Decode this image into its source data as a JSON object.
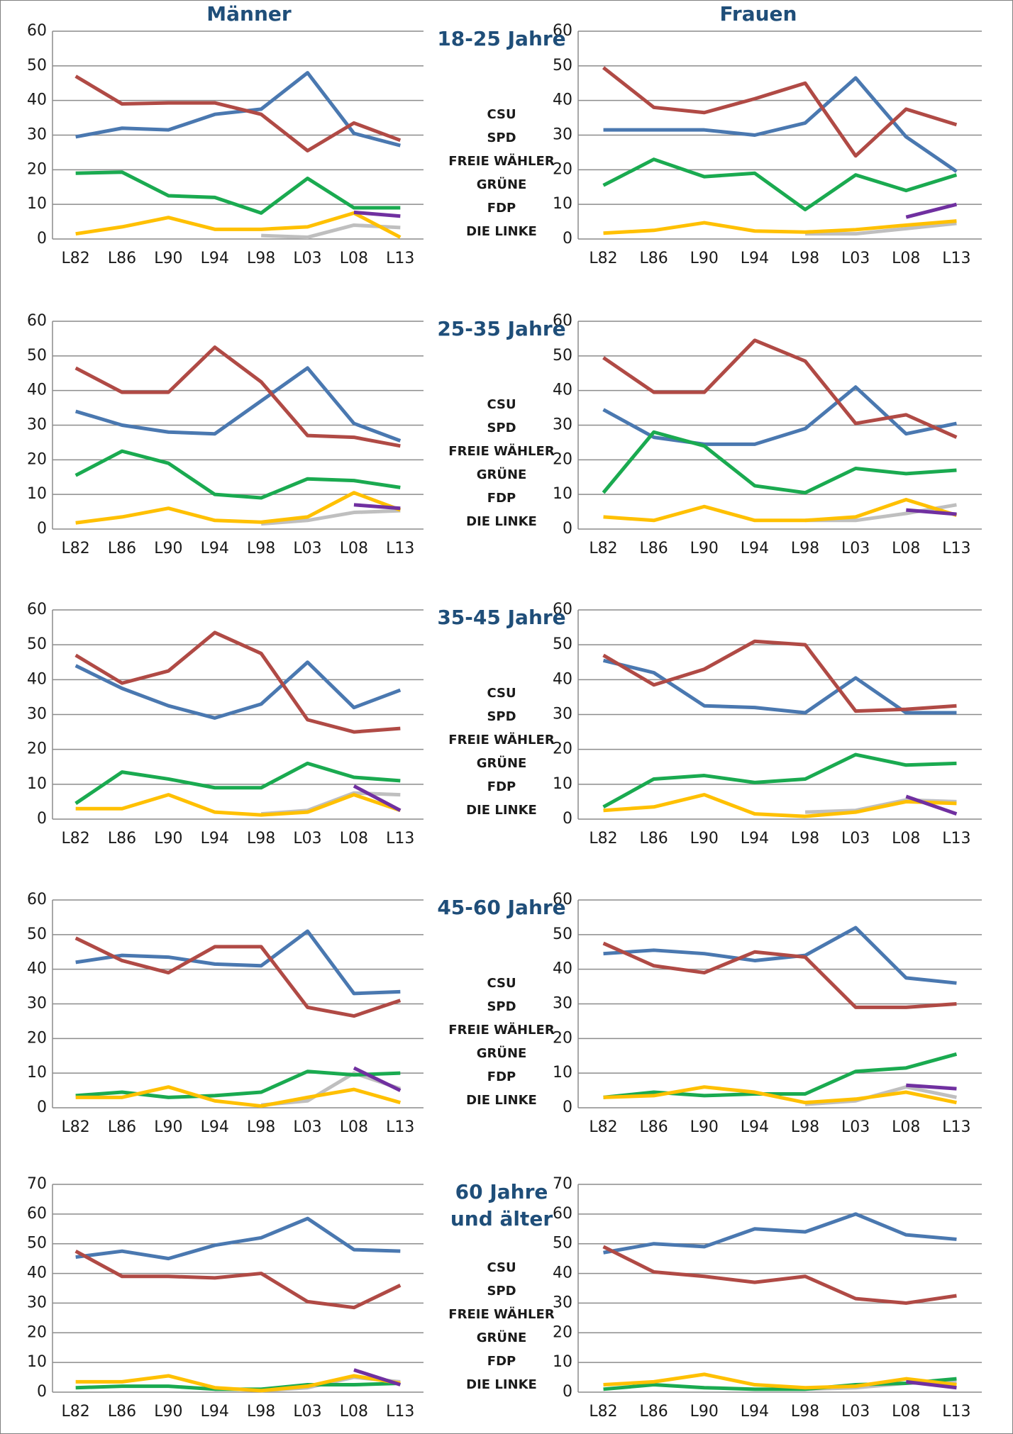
{
  "headers": [
    "Männer",
    "Frauen"
  ],
  "chart_data": [
    {
      "type": "line",
      "title": "18-25 Jahre",
      "categories": [
        "L82",
        "L86",
        "L90",
        "L94",
        "L98",
        "L03",
        "L08",
        "L13"
      ],
      "ylim": [
        0,
        60
      ],
      "yticks": [
        0,
        10,
        20,
        30,
        40,
        50,
        60
      ],
      "grid": true,
      "series": [
        {
          "name": "CSU",
          "color": "#4a78b0",
          "values": [
            29.5,
            32,
            31.5,
            36,
            37.5,
            48,
            30.5,
            27
          ]
        },
        {
          "name": "SPD",
          "color": "#b04a45",
          "values": [
            47,
            39,
            39.3,
            39.3,
            36,
            25.5,
            33.5,
            28.5
          ]
        },
        {
          "name": "FREIE WÄHLER",
          "color": "#bfbfbf",
          "values": [
            null,
            null,
            null,
            null,
            1,
            0.5,
            4,
            3.3
          ]
        },
        {
          "name": "GRÜNE",
          "color": "#1aaa50",
          "values": [
            19,
            19.3,
            12.5,
            12,
            7.5,
            17.5,
            9,
            9
          ]
        },
        {
          "name": "FDP",
          "color": "#ffc000",
          "values": [
            1.5,
            3.5,
            6.2,
            2.8,
            2.8,
            3.5,
            7.5,
            0.5
          ]
        },
        {
          "name": "DIE LINKE",
          "color": "#7030a0",
          "values": [
            null,
            null,
            null,
            null,
            null,
            null,
            7.7,
            6.6
          ]
        }
      ]
    },
    {
      "type": "line",
      "categories": [
        "L82",
        "L86",
        "L90",
        "L94",
        "L98",
        "L03",
        "L08",
        "L13"
      ],
      "ylim": [
        0,
        60
      ],
      "yticks": [
        0,
        10,
        20,
        30,
        40,
        50,
        60
      ],
      "grid": true,
      "series": [
        {
          "name": "CSU",
          "color": "#4a78b0",
          "values": [
            31.5,
            31.5,
            31.5,
            30,
            33.5,
            46.5,
            29.5,
            19.5
          ]
        },
        {
          "name": "SPD",
          "color": "#b04a45",
          "values": [
            49.5,
            38,
            36.5,
            40.5,
            45,
            24,
            37.5,
            33
          ]
        },
        {
          "name": "FREIE WÄHLER",
          "color": "#bfbfbf",
          "values": [
            null,
            null,
            null,
            null,
            1.5,
            1.5,
            3,
            4.5
          ]
        },
        {
          "name": "GRÜNE",
          "color": "#1aaa50",
          "values": [
            15.5,
            23,
            18,
            19,
            8.5,
            18.5,
            14,
            18.5
          ]
        },
        {
          "name": "FDP",
          "color": "#ffc000",
          "values": [
            1.7,
            2.5,
            4.7,
            2.3,
            2,
            2.7,
            4,
            5.2
          ]
        },
        {
          "name": "DIE LINKE",
          "color": "#7030a0",
          "values": [
            null,
            null,
            null,
            null,
            null,
            null,
            6.3,
            10
          ]
        }
      ]
    },
    {
      "type": "line",
      "title": "25-35 Jahre",
      "categories": [
        "L82",
        "L86",
        "L90",
        "L94",
        "L98",
        "L03",
        "L08",
        "L13"
      ],
      "ylim": [
        0,
        60
      ],
      "yticks": [
        0,
        10,
        20,
        30,
        40,
        50,
        60
      ],
      "grid": true,
      "series": [
        {
          "name": "CSU",
          "color": "#4a78b0",
          "values": [
            34,
            30,
            28,
            27.5,
            37,
            46.5,
            30.5,
            25.5
          ]
        },
        {
          "name": "SPD",
          "color": "#b04a45",
          "values": [
            46.5,
            39.5,
            39.5,
            52.5,
            42.5,
            27,
            26.5,
            24
          ]
        },
        {
          "name": "FREIE WÄHLER",
          "color": "#bfbfbf",
          "values": [
            null,
            null,
            null,
            null,
            1.5,
            2.5,
            4.8,
            5.3
          ]
        },
        {
          "name": "GRÜNE",
          "color": "#1aaa50",
          "values": [
            15.5,
            22.5,
            19,
            10,
            9,
            14.5,
            14,
            12
          ]
        },
        {
          "name": "FDP",
          "color": "#ffc000",
          "values": [
            1.8,
            3.5,
            6,
            2.5,
            2,
            3.5,
            10.5,
            5.5
          ]
        },
        {
          "name": "DIE LINKE",
          "color": "#7030a0",
          "values": [
            null,
            null,
            null,
            null,
            null,
            null,
            7,
            6
          ]
        }
      ]
    },
    {
      "type": "line",
      "categories": [
        "L82",
        "L86",
        "L90",
        "L94",
        "L98",
        "L03",
        "L08",
        "L13"
      ],
      "ylim": [
        0,
        60
      ],
      "yticks": [
        0,
        10,
        20,
        30,
        40,
        50,
        60
      ],
      "grid": true,
      "series": [
        {
          "name": "CSU",
          "color": "#4a78b0",
          "values": [
            34.5,
            26.5,
            24.5,
            24.5,
            29,
            41,
            27.5,
            30.5
          ]
        },
        {
          "name": "SPD",
          "color": "#b04a45",
          "values": [
            49.5,
            39.5,
            39.5,
            54.5,
            48.5,
            30.5,
            33,
            26.5
          ]
        },
        {
          "name": "FREIE WÄHLER",
          "color": "#bfbfbf",
          "values": [
            null,
            null,
            null,
            null,
            2.5,
            2.5,
            4.5,
            7
          ]
        },
        {
          "name": "GRÜNE",
          "color": "#1aaa50",
          "values": [
            10.5,
            28,
            24,
            12.5,
            10.5,
            17.5,
            16,
            17
          ]
        },
        {
          "name": "FDP",
          "color": "#ffc000",
          "values": [
            3.5,
            2.5,
            6.5,
            2.5,
            2.5,
            3.5,
            8.5,
            4
          ]
        },
        {
          "name": "DIE LINKE",
          "color": "#7030a0",
          "values": [
            null,
            null,
            null,
            null,
            null,
            null,
            5.5,
            4.3
          ]
        }
      ]
    },
    {
      "type": "line",
      "title": "35-45 Jahre",
      "categories": [
        "L82",
        "L86",
        "L90",
        "L94",
        "L98",
        "L03",
        "L08",
        "L13"
      ],
      "ylim": [
        0,
        60
      ],
      "yticks": [
        0,
        10,
        20,
        30,
        40,
        50,
        60
      ],
      "grid": true,
      "series": [
        {
          "name": "CSU",
          "color": "#4a78b0",
          "values": [
            44,
            37.5,
            32.5,
            29,
            33,
            45,
            32,
            37
          ]
        },
        {
          "name": "SPD",
          "color": "#b04a45",
          "values": [
            47,
            39,
            42.5,
            53.5,
            47.5,
            28.5,
            25,
            26
          ]
        },
        {
          "name": "FREIE WÄHLER",
          "color": "#bfbfbf",
          "values": [
            null,
            null,
            null,
            null,
            1.5,
            2.5,
            7.5,
            7
          ]
        },
        {
          "name": "GRÜNE",
          "color": "#1aaa50",
          "values": [
            4.5,
            13.5,
            11.5,
            9,
            9,
            16,
            12,
            11
          ]
        },
        {
          "name": "FDP",
          "color": "#ffc000",
          "values": [
            3,
            3,
            7,
            2,
            1.2,
            2,
            7,
            2.5
          ]
        },
        {
          "name": "DIE LINKE",
          "color": "#7030a0",
          "values": [
            null,
            null,
            null,
            null,
            null,
            null,
            9.5,
            2.5
          ]
        }
      ]
    },
    {
      "type": "line",
      "categories": [
        "L82",
        "L86",
        "L90",
        "L94",
        "L98",
        "L03",
        "L08",
        "L13"
      ],
      "ylim": [
        0,
        60
      ],
      "yticks": [
        0,
        10,
        20,
        30,
        40,
        50,
        60
      ],
      "grid": true,
      "series": [
        {
          "name": "CSU",
          "color": "#4a78b0",
          "values": [
            45.5,
            42,
            32.5,
            32,
            30.5,
            40.5,
            30.5,
            30.5
          ]
        },
        {
          "name": "SPD",
          "color": "#b04a45",
          "values": [
            47,
            38.5,
            43,
            51,
            50,
            31,
            31.5,
            32.5
          ]
        },
        {
          "name": "FREIE WÄHLER",
          "color": "#bfbfbf",
          "values": [
            null,
            null,
            null,
            null,
            2,
            2.5,
            5.5,
            5
          ]
        },
        {
          "name": "GRÜNE",
          "color": "#1aaa50",
          "values": [
            3.5,
            11.5,
            12.5,
            10.5,
            11.5,
            18.5,
            15.5,
            16
          ]
        },
        {
          "name": "FDP",
          "color": "#ffc000",
          "values": [
            2.5,
            3.5,
            7,
            1.5,
            0.8,
            2,
            5,
            4.5
          ]
        },
        {
          "name": "DIE LINKE",
          "color": "#7030a0",
          "values": [
            null,
            null,
            null,
            null,
            null,
            null,
            6.5,
            1.5
          ]
        }
      ]
    },
    {
      "type": "line",
      "title": "45-60 Jahre",
      "categories": [
        "L82",
        "L86",
        "L90",
        "L94",
        "L98",
        "L03",
        "L08",
        "L13"
      ],
      "ylim": [
        0,
        60
      ],
      "yticks": [
        0,
        10,
        20,
        30,
        40,
        50,
        60
      ],
      "grid": true,
      "series": [
        {
          "name": "CSU",
          "color": "#4a78b0",
          "values": [
            42,
            44,
            43.5,
            41.5,
            41,
            51,
            33,
            33.5
          ]
        },
        {
          "name": "SPD",
          "color": "#b04a45",
          "values": [
            49,
            42.5,
            39,
            46.5,
            46.5,
            29,
            26.5,
            31
          ]
        },
        {
          "name": "FREIE WÄHLER",
          "color": "#bfbfbf",
          "values": [
            null,
            null,
            null,
            null,
            0.8,
            2,
            10,
            5.5
          ]
        },
        {
          "name": "GRÜNE",
          "color": "#1aaa50",
          "values": [
            3.5,
            4.5,
            3,
            3.5,
            4.5,
            10.5,
            9.5,
            10
          ]
        },
        {
          "name": "FDP",
          "color": "#ffc000",
          "values": [
            3,
            3,
            6,
            2,
            0.5,
            3,
            5.3,
            1.5
          ]
        },
        {
          "name": "DIE LINKE",
          "color": "#7030a0",
          "values": [
            null,
            null,
            null,
            null,
            null,
            null,
            11.5,
            5
          ]
        }
      ]
    },
    {
      "type": "line",
      "categories": [
        "L82",
        "L86",
        "L90",
        "L94",
        "L98",
        "L03",
        "L08",
        "L13"
      ],
      "ylim": [
        0,
        60
      ],
      "yticks": [
        0,
        10,
        20,
        30,
        40,
        50,
        60
      ],
      "grid": true,
      "series": [
        {
          "name": "CSU",
          "color": "#4a78b0",
          "values": [
            44.5,
            45.5,
            44.5,
            42.5,
            44,
            52,
            37.5,
            36
          ]
        },
        {
          "name": "SPD",
          "color": "#b04a45",
          "values": [
            47.5,
            41,
            39,
            45,
            43.5,
            29,
            29,
            30
          ]
        },
        {
          "name": "FREIE WÄHLER",
          "color": "#bfbfbf",
          "values": [
            null,
            null,
            null,
            null,
            1,
            2,
            6,
            3
          ]
        },
        {
          "name": "GRÜNE",
          "color": "#1aaa50",
          "values": [
            3,
            4.5,
            3.5,
            4,
            4,
            10.5,
            11.5,
            15.5
          ]
        },
        {
          "name": "FDP",
          "color": "#ffc000",
          "values": [
            3,
            3.5,
            6,
            4.5,
            1.5,
            2.5,
            4.5,
            1.5
          ]
        },
        {
          "name": "DIE LINKE",
          "color": "#7030a0",
          "values": [
            null,
            null,
            null,
            null,
            null,
            null,
            6.5,
            5.5
          ]
        }
      ]
    },
    {
      "type": "line",
      "title": "60 Jahre und älter",
      "categories": [
        "L82",
        "L86",
        "L90",
        "L94",
        "L98",
        "L03",
        "L08",
        "L13"
      ],
      "ylim": [
        0,
        70
      ],
      "yticks": [
        0,
        10,
        20,
        30,
        40,
        50,
        60,
        70
      ],
      "grid": true,
      "series": [
        {
          "name": "CSU",
          "color": "#4a78b0",
          "values": [
            45.5,
            47.5,
            45,
            49.5,
            52,
            58.5,
            48,
            47.5
          ]
        },
        {
          "name": "SPD",
          "color": "#b04a45",
          "values": [
            47.5,
            39,
            39,
            38.5,
            40,
            30.5,
            28.5,
            36
          ]
        },
        {
          "name": "FREIE WÄHLER",
          "color": "#bfbfbf",
          "values": [
            null,
            null,
            null,
            null,
            0.5,
            1.5,
            5,
            3.5
          ]
        },
        {
          "name": "GRÜNE",
          "color": "#1aaa50",
          "values": [
            1.5,
            2,
            2,
            1,
            1,
            2.5,
            2.5,
            3
          ]
        },
        {
          "name": "FDP",
          "color": "#ffc000",
          "values": [
            3.5,
            3.5,
            5.5,
            1.5,
            0.5,
            2,
            5.5,
            3
          ]
        },
        {
          "name": "DIE LINKE",
          "color": "#7030a0",
          "values": [
            null,
            null,
            null,
            null,
            null,
            null,
            7.5,
            2.5
          ]
        }
      ]
    },
    {
      "type": "line",
      "categories": [
        "L82",
        "L86",
        "L90",
        "L94",
        "L98",
        "L03",
        "L08",
        "L13"
      ],
      "ylim": [
        0,
        70
      ],
      "yticks": [
        0,
        10,
        20,
        30,
        40,
        50,
        60,
        70
      ],
      "grid": true,
      "series": [
        {
          "name": "CSU",
          "color": "#4a78b0",
          "values": [
            47,
            50,
            49,
            55,
            54,
            60,
            53,
            51.5
          ]
        },
        {
          "name": "SPD",
          "color": "#b04a45",
          "values": [
            49,
            40.5,
            39,
            37,
            39,
            31.5,
            30,
            32.5
          ]
        },
        {
          "name": "FREIE WÄHLER",
          "color": "#bfbfbf",
          "values": [
            null,
            null,
            null,
            null,
            1,
            1.5,
            3,
            3.5
          ]
        },
        {
          "name": "GRÜNE",
          "color": "#1aaa50",
          "values": [
            1,
            2.5,
            1.5,
            1,
            1,
            2.5,
            3,
            4.5
          ]
        },
        {
          "name": "FDP",
          "color": "#ffc000",
          "values": [
            2.5,
            3.5,
            6,
            2.5,
            1.5,
            2,
            4.5,
            2.5
          ]
        },
        {
          "name": "DIE LINKE",
          "color": "#7030a0",
          "values": [
            null,
            null,
            null,
            null,
            null,
            null,
            3.5,
            1.5
          ]
        }
      ]
    }
  ]
}
